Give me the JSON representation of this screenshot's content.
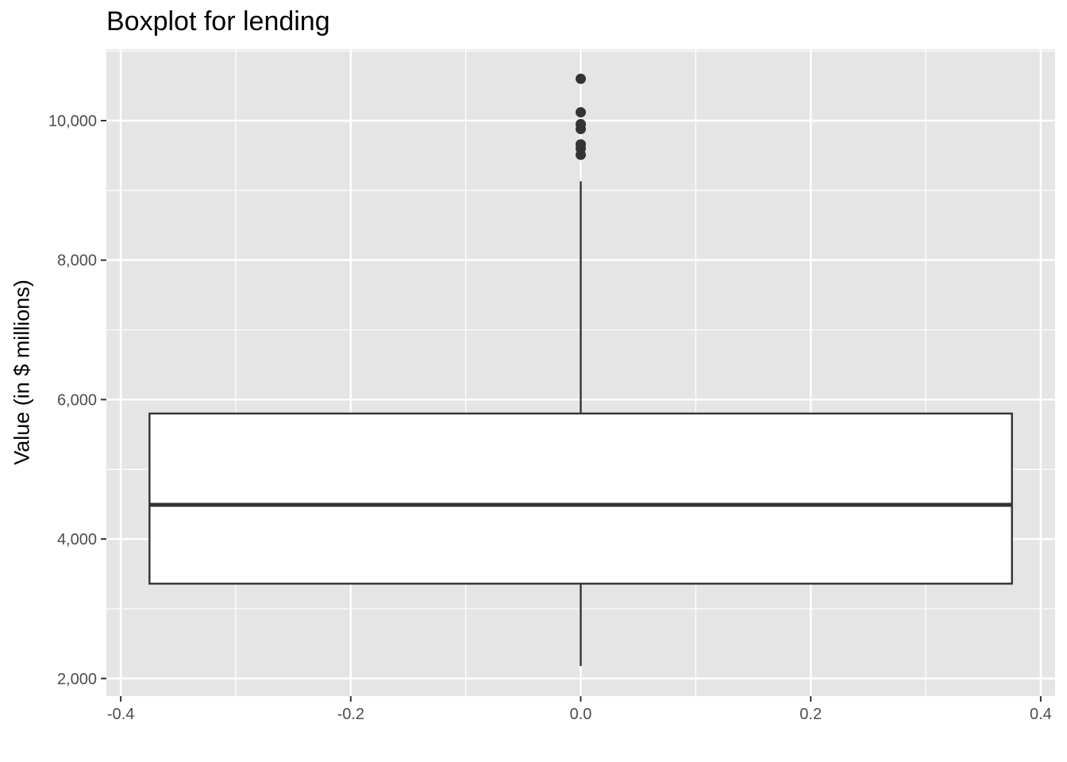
{
  "chart_data": {
    "type": "boxplot",
    "title": "Boxplot for lending",
    "xlabel": "",
    "ylabel": "Value (in $ millions)",
    "xlim": [
      -0.4,
      0.4
    ],
    "ylim": [
      2000,
      10700
    ],
    "x_ticks": [
      -0.4,
      -0.2,
      0.0,
      0.2,
      0.4
    ],
    "x_tick_labels": [
      "-0.4",
      "-0.2",
      "0.0",
      "0.2",
      "0.4"
    ],
    "y_ticks": [
      2000,
      4000,
      6000,
      8000,
      10000
    ],
    "y_tick_labels": [
      "2,000",
      "4,000",
      "6,000",
      "8,000",
      "10,000"
    ],
    "grid": true,
    "box": {
      "x": 0.0,
      "width": 0.75,
      "whisker_low": 2180,
      "q1": 3360,
      "median": 4490,
      "q3": 5800,
      "whisker_high": 9130
    },
    "outliers": [
      10600,
      10120,
      9950,
      9880,
      9660,
      9600,
      9510
    ],
    "colors": {
      "panel_background": "#e5e5e5",
      "grid": "#ffffff",
      "box_fill": "#ffffff",
      "box_line": "#333333",
      "outlier": "#333333"
    }
  }
}
